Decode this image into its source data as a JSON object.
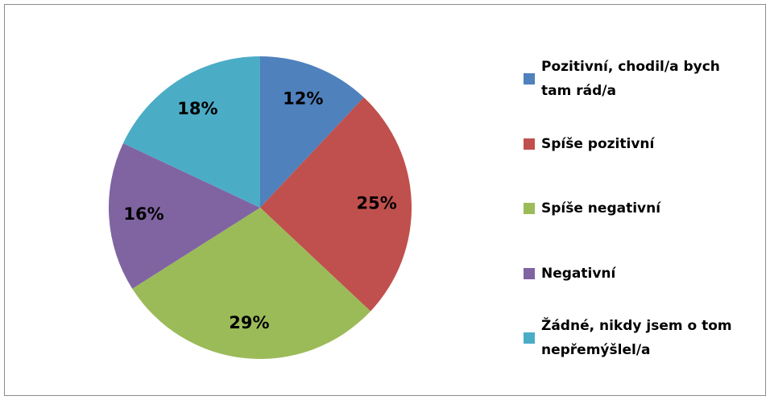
{
  "chart_data": {
    "type": "pie",
    "categories": [
      "Pozitivní, chodil/a bych tam rád/a",
      "Spíše pozitivní",
      "Spíše negativní",
      "Negativní",
      "Žádné, nikdy jsem o tom nepřemýšlel/a"
    ],
    "values": [
      12,
      25,
      29,
      16,
      18
    ],
    "value_labels": [
      "12%",
      "25%",
      "29%",
      "16%",
      "18%"
    ],
    "colors": [
      "#4f81bd",
      "#c0504d",
      "#9bbb59",
      "#8064a2",
      "#4bacc6"
    ],
    "legend": "right"
  }
}
